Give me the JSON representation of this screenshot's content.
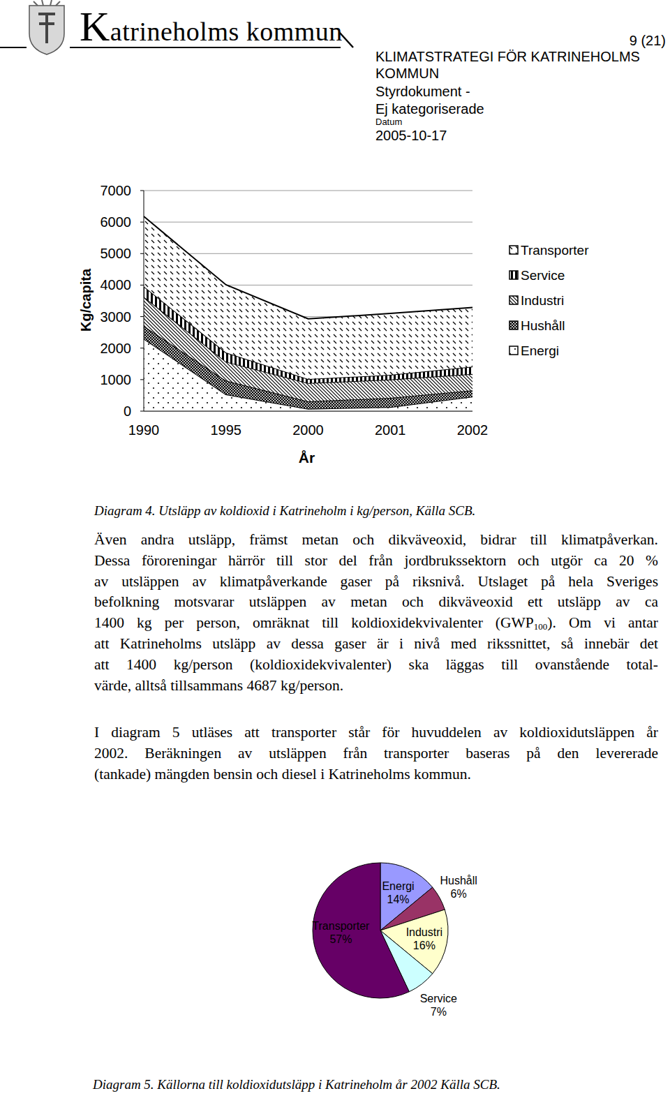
{
  "header": {
    "logo_text": "Katrineholms kommun",
    "page": "9 (21)",
    "title_lines": [
      "KLIMATSTRATEGI FÖR KATRINEHOLMS",
      "KOMMUN"
    ],
    "doc_type_lines": [
      "Styrdokument -",
      "Ej kategoriserade"
    ],
    "date_label": "Datum",
    "date": "2005-10-17"
  },
  "chart_data": [
    {
      "type": "area",
      "stacked": true,
      "categories": [
        "1990",
        "1995",
        "2000",
        "2001",
        "2002"
      ],
      "series": [
        {
          "name": "Energi",
          "color": "#000000",
          "values": [
            2300,
            530,
            70,
            130,
            460
          ]
        },
        {
          "name": "Hushåll",
          "color": "#000000",
          "values": [
            400,
            440,
            240,
            290,
            200
          ]
        },
        {
          "name": "Industri",
          "color": "#000000",
          "values": [
            930,
            600,
            580,
            580,
            520
          ]
        },
        {
          "name": "Service",
          "color": "#000000",
          "values": [
            330,
            290,
            130,
            150,
            230
          ]
        },
        {
          "name": "Transporter",
          "color": "#000000",
          "values": [
            2220,
            2150,
            1910,
            1950,
            1880
          ]
        }
      ],
      "ylim": [
        0,
        7000
      ],
      "yticks": [
        0,
        1000,
        2000,
        3000,
        4000,
        5000,
        6000,
        7000
      ],
      "grid": true,
      "x_label": "År",
      "y_label": "Kg/capita",
      "legend": "right"
    },
    {
      "type": "pie",
      "categories": [
        "Energi",
        "Hushåll",
        "Industri",
        "Service",
        "Transporter"
      ],
      "values": [
        14,
        6,
        16,
        7,
        57
      ],
      "value_labels": [
        "14%",
        "6%",
        "16%",
        "7%",
        "57%"
      ],
      "colors": [
        "#9999ff",
        "#993366",
        "#ffffcc",
        "#ccffff",
        "#660066"
      ],
      "data_labels": true
    }
  ],
  "captions": [
    "Diagram 4. Utsläpp av koldioxid i Katrineholm i kg/person, Källa SCB.",
    "Diagram 5. Källorna till koldioxidutsläpp i Katrineholm år 2002 Källa SCB."
  ],
  "paragraphs": [
    [
      [
        "Även andra utsläpp, främst metan och dikväveoxid, bidrar till klimatpåverkan."
      ],
      [
        "Dessa föroreningar härrör till stor del från jordbrukssektorn och utgör ca 20 %"
      ],
      [
        "av utsläppen av klimatpåverkande gaser på riksnivå. Utslaget på hela Sveriges"
      ],
      [
        "befolkning motsvarar utsläppen av metan och dikväveoxid ett utsläpp av ca"
      ],
      [
        "1400 kg per person, omräknat till koldioxidekvivalenter (GWP",
        "100",
        "). Om vi antar"
      ],
      [
        "att Katrineholms utsläpp av dessa gaser är i nivå med rikssnittet, så innebär det"
      ],
      [
        "att 1400 kg/person (koldioxidekvivalenter) ska läggas till ovanstående total-"
      ],
      [
        "värde, alltså tillsammans 4687 kg/person."
      ]
    ],
    [
      [
        "I diagram 5 utläses att transporter står för huvuddelen av koldioxidutsläppen år"
      ],
      [
        "2002. Beräkningen av utsläppen från transporter baseras på den levererade"
      ],
      [
        "(tankade) mängden bensin och diesel i Katrineholms kommun."
      ]
    ]
  ]
}
